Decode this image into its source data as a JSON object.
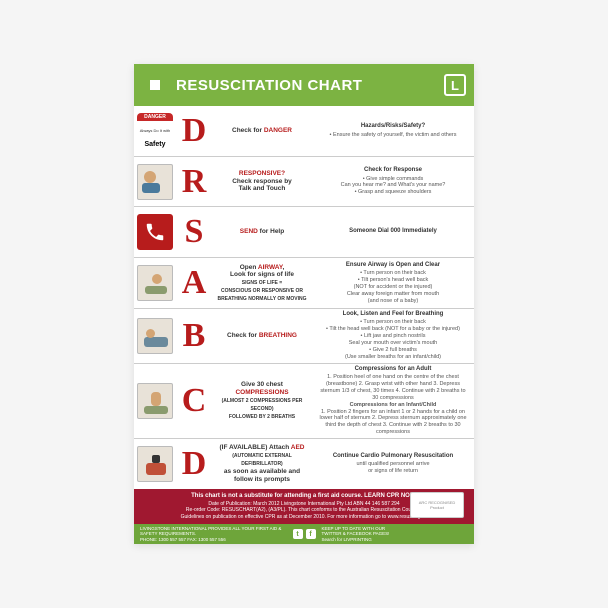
{
  "header": {
    "title": "RESUSCITATION CHART",
    "bg_color": "#7cb342",
    "logo_letter": "L"
  },
  "rows": [
    {
      "letter": "D",
      "icon_type": "danger",
      "action_html": "Check for <span class='red'>DANGER</span>",
      "detail_title": "Hazards/Risks/Safety?",
      "detail_body": "• Ensure the safety of yourself, the victim and others"
    },
    {
      "letter": "R",
      "icon_type": "image-r",
      "action_html": "<span class='red'>RESPONSIVE?</span><br>Check response by<br>Talk and Touch",
      "detail_title": "Check for Response",
      "detail_body": "• Give simple commands<br>Can you hear me? and What's your name?<br>• Grasp and squeeze shoulders"
    },
    {
      "letter": "S",
      "icon_type": "phone",
      "action_html": "<span class='red'>SEND</span> for Help",
      "detail_title": "Someone Dial 000 Immediately",
      "detail_body": ""
    },
    {
      "letter": "A",
      "icon_type": "image-a",
      "action_html": "Open <span class='red'>AIRWAY</span>,<br>Look for signs of life<br><span style='font-size:5px'>SIGNS OF LIFE =<br>CONSCIOUS OR RESPONSIVE OR<br>BREATHING NORMALLY OR MOVING</span>",
      "detail_title": "Ensure Airway is Open and Clear",
      "detail_body": "• Turn person on their back<br>• Tilt person's head well back<br>(NOT for accident or the injured)<br>Clear away foreign matter from mouth<br>(and nose of a baby)"
    },
    {
      "letter": "B",
      "icon_type": "image-b",
      "action_html": "Check for <span class='red'>BREATHING</span>",
      "detail_title": "Look, Listen and Feel for Breathing",
      "detail_body": "• Turn person on their back<br>• Tilt the head well back (NOT for a baby or the injured)<br>• Lift jaw and pinch nostrils<br>Seal your mouth over victim's mouth<br>• Give 2 full breaths<br>(Use smaller breaths for an infant/child)"
    },
    {
      "letter": "C",
      "icon_type": "image-c",
      "action_html": "Give 30 chest<br><span class='red'>COMPRESSIONS</span><br><span style='font-size:5px'>(ALMOST 2 COMPRESSIONS PER SECOND)<br>FOLLOWED BY 2 BREATHS</span>",
      "detail_title": "Compressions for an Adult",
      "detail_body": "1. Position heel of one hand on the centre of the chest (breastbone) 2. Grasp wrist with other hand 3. Depress sternum 1/3 of chest, 30 times 4. Continue with 2 breaths to 30 compressions<br><b>Compressions for an Infant/Child</b><br>1. Position 2 fingers for an infant 1 or 2 hands for a child on lower half of sternum 2. Depress sternum approximately one third the depth of chest 3. Continue with 2 breaths to 30 compressions"
    },
    {
      "letter": "D",
      "icon_type": "image-d",
      "action_html": "(IF AVAILABLE) Attach <span class='red'>AED</span><br><span style='font-size:5px'>(AUTOMATIC EXTERNAL DEFIBRILLATOR)</span><br>as soon as available and<br>follow its prompts",
      "detail_title": "Continue Cardio Pulmonary Resuscitation",
      "detail_body": "until qualified personnel arrive<br>or signs of life return"
    }
  ],
  "footer_red": {
    "strong": "This chart is not a substitute for attending a first aid course. LEARN CPR NOW.",
    "body": "Date of Publication: March 2012 Livingstone International Pty Ltd ABN 44 146 587 294<br>Re-order Code: RESUSCHART(A2), (A3/PL). This chart conforms to the Australian Resuscitation Council's<br>Guidelines on publication on effective CPR as at December 2010. For more information go to www.resus.org.au"
  },
  "footer_green": {
    "left": "LIVINGSTONE INTERNATIONAL PROVIDES ALL YOUR FIRST AID & SAFETY REQUIREMENTS.<br>PHONE: 1300 557 557  FAX: 1300 557 556",
    "right": "KEEP UP TO DATE WITH OUR<br>TWITTER & FACEBOOK PAGES!<br>Search for LIVPRINTING"
  },
  "seal_text": "ARC RECOGNISED<br>Product",
  "colors": {
    "letter": "#b71c1c",
    "footer_red_bg": "#a01830",
    "footer_green_bg": "#6ea53a"
  }
}
